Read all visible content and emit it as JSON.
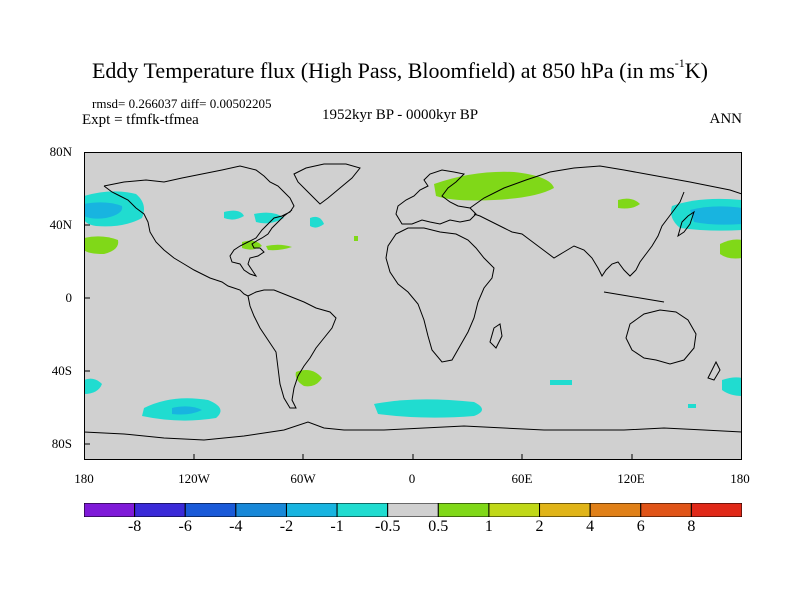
{
  "title": {
    "prefix": "Eddy Temperature flux (High Pass, Bloomfield) at 850 hPa (in ms",
    "superscript": "-1",
    "suffix": "K)"
  },
  "stats": "rmsd= 0.266037 diff= 0.00502205",
  "experiment": "Expt = tfmfk-tfmea",
  "period": "1952kyr BP - 0000kyr BP",
  "season": "ANN",
  "latitude_labels": [
    "80N",
    "40N",
    "0",
    "40S",
    "80S"
  ],
  "longitude_labels": [
    "180",
    "120W",
    "60W",
    "0",
    "60E",
    "120E",
    "180"
  ],
  "colorbar": {
    "labels": [
      "-8",
      "-6",
      "-4",
      "-2",
      "-1",
      "-0.5",
      "0.5",
      "1",
      "2",
      "4",
      "6",
      "8"
    ],
    "colors": [
      "#7f1ad8",
      "#3a2ad8",
      "#1a5ad8",
      "#1888d8",
      "#18b4e0",
      "#20dcd0",
      "#d0d0d0",
      "#80d818",
      "#c0d818",
      "#e0b418",
      "#e08018",
      "#e05418",
      "#e02818"
    ]
  },
  "colors": {
    "ocean_land": "#d0d0d0",
    "coast": "#000000"
  }
}
